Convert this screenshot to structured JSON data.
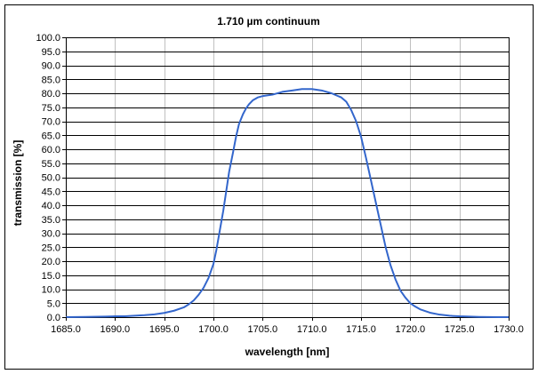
{
  "chart_data": {
    "type": "line",
    "title": "1.710 µm continuum",
    "xlabel": "wavelength [nm]",
    "ylabel": "transmission [%]",
    "xlim": [
      1685.0,
      1730.0
    ],
    "ylim": [
      0.0,
      100.0
    ],
    "x_ticks": [
      1685.0,
      1690.0,
      1695.0,
      1700.0,
      1705.0,
      1710.0,
      1715.0,
      1720.0,
      1725.0,
      1730.0
    ],
    "y_ticks": [
      0.0,
      5.0,
      10.0,
      15.0,
      20.0,
      25.0,
      30.0,
      35.0,
      40.0,
      45.0,
      50.0,
      55.0,
      60.0,
      65.0,
      70.0,
      75.0,
      80.0,
      85.0,
      90.0,
      95.0,
      100.0
    ],
    "x_tick_labels": [
      "1685.0",
      "1690.0",
      "1695.0",
      "1700.0",
      "1705.0",
      "1710.0",
      "1715.0",
      "1720.0",
      "1725.0",
      "1730.0"
    ],
    "y_tick_labels": [
      "0.0",
      "5.0",
      "10.0",
      "15.0",
      "20.0",
      "25.0",
      "30.0",
      "35.0",
      "40.0",
      "45.0",
      "50.0",
      "55.0",
      "60.0",
      "65.0",
      "70.0",
      "75.0",
      "80.0",
      "85.0",
      "90.0",
      "95.0",
      "100.0"
    ],
    "grid": "both",
    "legend": "none",
    "colors": {
      "line": "#3366cc",
      "grid_x": "#c0c0c0",
      "grid_y": "#000000",
      "axis": "#000000"
    },
    "series": [
      {
        "name": "transmission",
        "x": [
          1685.0,
          1687.0,
          1689.0,
          1690.0,
          1691.0,
          1692.0,
          1693.0,
          1694.0,
          1695.0,
          1696.0,
          1697.0,
          1697.5,
          1698.0,
          1698.5,
          1699.0,
          1699.5,
          1700.0,
          1700.3,
          1700.6,
          1701.0,
          1701.3,
          1701.6,
          1702.0,
          1702.3,
          1702.6,
          1703.0,
          1703.3,
          1703.6,
          1704.0,
          1704.5,
          1705.0,
          1706.0,
          1707.0,
          1708.0,
          1709.0,
          1710.0,
          1711.0,
          1712.0,
          1713.0,
          1713.5,
          1714.0,
          1714.5,
          1715.0,
          1715.5,
          1716.0,
          1716.5,
          1717.0,
          1717.5,
          1718.0,
          1718.5,
          1719.0,
          1719.5,
          1720.0,
          1720.5,
          1721.0,
          1722.0,
          1723.0,
          1724.0,
          1725.0,
          1727.0,
          1729.0,
          1730.0
        ],
        "y": [
          0.0,
          0.1,
          0.2,
          0.3,
          0.3,
          0.5,
          0.7,
          1.0,
          1.5,
          2.3,
          3.5,
          4.6,
          6.0,
          8.0,
          10.5,
          14.0,
          19.0,
          24.0,
          30.0,
          38.0,
          45.0,
          52.0,
          59.0,
          64.5,
          69.0,
          72.5,
          74.5,
          76.0,
          77.5,
          78.5,
          79.0,
          79.5,
          80.5,
          81.0,
          81.5,
          81.5,
          81.0,
          80.0,
          78.5,
          77.0,
          74.0,
          70.0,
          64.5,
          57.0,
          49.0,
          41.0,
          33.0,
          25.0,
          18.5,
          13.5,
          9.5,
          7.0,
          5.0,
          3.8,
          2.8,
          1.6,
          0.9,
          0.5,
          0.3,
          0.1,
          0.0,
          0.0
        ]
      }
    ]
  }
}
